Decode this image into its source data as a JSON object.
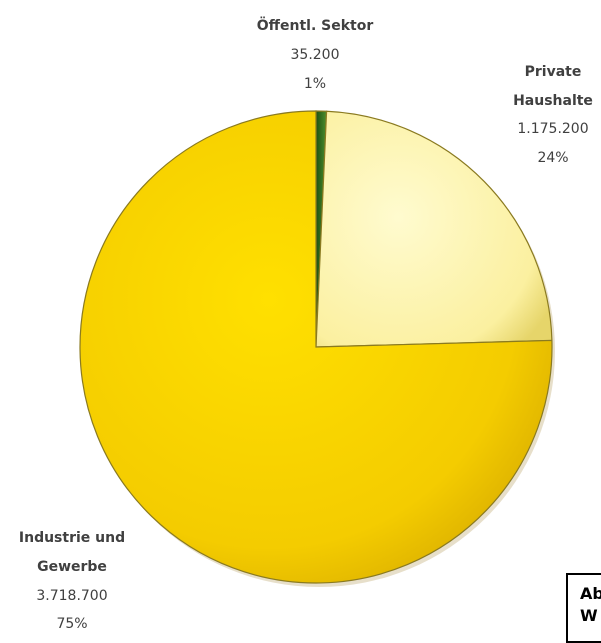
{
  "chart_data": {
    "type": "pie",
    "title": "",
    "slices": [
      {
        "name": "Öffentl. Sektor",
        "value": 35200,
        "value_label": "35.200",
        "percent_label": "1%",
        "color": "#2f6f1e"
      },
      {
        "name": "Private Haushalte",
        "name_lines": [
          "Private",
          "Haushalte"
        ],
        "value": 1175200,
        "value_label": "1.175.200",
        "percent_label": "24%",
        "color": "#fbf2a0"
      },
      {
        "name": "Industrie und Gewerbe",
        "name_lines": [
          "Industrie und",
          "Gewerbe"
        ],
        "value": 3718700,
        "value_label": "3.718.700",
        "percent_label": "75%",
        "color": "#f5cf00"
      }
    ],
    "legend": "none"
  },
  "caption": {
    "line1": "Ab",
    "line2": "W"
  },
  "colors": {
    "edge": "#8a7a20",
    "label_text": "#404040"
  }
}
